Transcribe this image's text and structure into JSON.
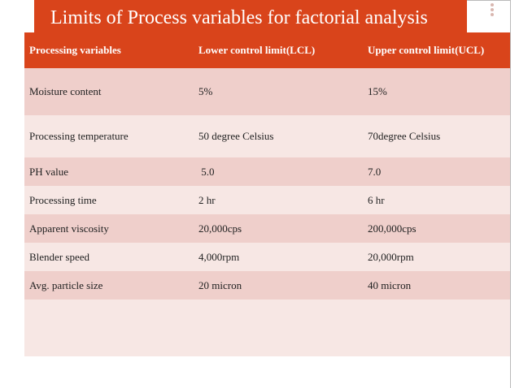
{
  "title": "Limits of Process variables for factorial analysis",
  "colors": {
    "header": "#d9441b",
    "row_dark": "#efcfcb",
    "row_light": "#f7e7e4"
  },
  "table": {
    "headers": [
      "Processing variables",
      "Lower control limit(LCL)",
      "Upper control limit(UCL)"
    ],
    "rows": [
      [
        "Moisture content",
        "5%",
        "15%"
      ],
      [
        "Processing temperature",
        "50 degree Celsius",
        "70degree Celsius"
      ],
      [
        "PH value",
        " 5.0",
        "7.0"
      ],
      [
        "Processing time",
        "2 hr",
        "6 hr"
      ],
      [
        "Apparent viscosity",
        "20,000cps",
        "200,000cps"
      ],
      [
        "Blender speed",
        "4,000rpm",
        "20,000rpm"
      ],
      [
        "Avg. particle size",
        "20 micron",
        "40 micron"
      ],
      [
        "",
        "",
        ""
      ]
    ]
  }
}
